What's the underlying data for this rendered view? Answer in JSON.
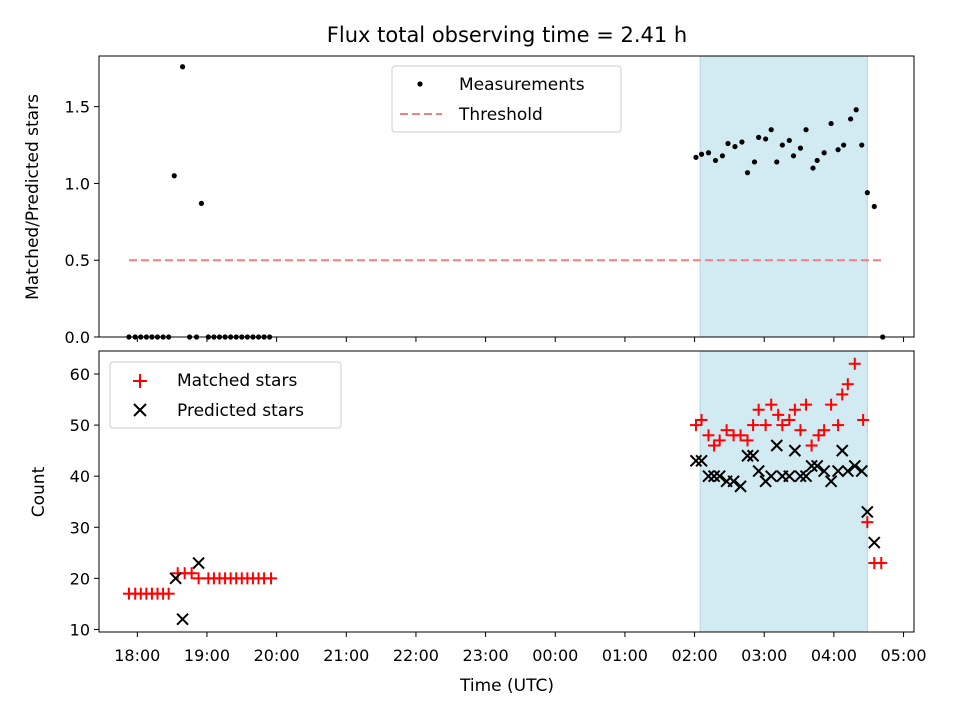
{
  "figure": {
    "title": "Flux total observing time = 2.41 h",
    "shade_color": "#add8e6"
  },
  "chart_data": [
    {
      "type": "scatter",
      "ylabel": "Matched/Predicted stars",
      "xlabel": "",
      "xlim": [
        17.45,
        29.15
      ],
      "ylim": [
        0,
        1.83
      ],
      "yticks": [
        0.0,
        0.5,
        1.0,
        1.5
      ],
      "ytick_labels": [
        "0.0",
        "0.5",
        "1.0",
        "1.5"
      ],
      "legend_position": "upper center",
      "grid": false,
      "shaded_span": [
        26.08,
        28.48
      ],
      "series": [
        {
          "name": "Measurements",
          "type": "scatter",
          "marker": "dot",
          "color": "#000000",
          "points": [
            [
              17.88,
              0
            ],
            [
              17.97,
              0
            ],
            [
              18.05,
              0
            ],
            [
              18.13,
              0
            ],
            [
              18.21,
              0
            ],
            [
              18.29,
              0
            ],
            [
              18.37,
              0
            ],
            [
              18.45,
              0
            ],
            [
              18.53,
              1.05
            ],
            [
              18.65,
              1.76
            ],
            [
              18.75,
              0
            ],
            [
              18.85,
              0
            ],
            [
              18.92,
              0.87
            ],
            [
              19.02,
              0
            ],
            [
              19.1,
              0
            ],
            [
              19.18,
              0
            ],
            [
              19.26,
              0
            ],
            [
              19.34,
              0
            ],
            [
              19.42,
              0
            ],
            [
              19.5,
              0
            ],
            [
              19.58,
              0
            ],
            [
              19.66,
              0
            ],
            [
              19.74,
              0
            ],
            [
              19.82,
              0
            ],
            [
              19.9,
              0
            ],
            [
              26.02,
              1.17
            ],
            [
              26.1,
              1.19
            ],
            [
              26.2,
              1.2
            ],
            [
              26.3,
              1.15
            ],
            [
              26.4,
              1.18
            ],
            [
              26.48,
              1.26
            ],
            [
              26.58,
              1.24
            ],
            [
              26.68,
              1.27
            ],
            [
              26.76,
              1.07
            ],
            [
              26.86,
              1.14
            ],
            [
              26.92,
              1.3
            ],
            [
              27.02,
              1.29
            ],
            [
              27.1,
              1.35
            ],
            [
              27.18,
              1.14
            ],
            [
              27.26,
              1.25
            ],
            [
              27.36,
              1.28
            ],
            [
              27.42,
              1.18
            ],
            [
              27.52,
              1.23
            ],
            [
              27.6,
              1.35
            ],
            [
              27.7,
              1.1
            ],
            [
              27.76,
              1.15
            ],
            [
              27.86,
              1.2
            ],
            [
              27.96,
              1.39
            ],
            [
              28.06,
              1.22
            ],
            [
              28.14,
              1.25
            ],
            [
              28.24,
              1.42
            ],
            [
              28.32,
              1.48
            ],
            [
              28.4,
              1.25
            ],
            [
              28.48,
              0.94
            ],
            [
              28.58,
              0.85
            ],
            [
              28.7,
              0
            ]
          ]
        },
        {
          "name": "Threshold",
          "type": "line",
          "style": "dashed",
          "color": "#f08080",
          "points": [
            [
              17.88,
              0.5
            ],
            [
              28.7,
              0.5
            ]
          ]
        }
      ]
    },
    {
      "type": "scatter",
      "ylabel": "Count",
      "xlabel": "Time (UTC)",
      "xlim": [
        17.45,
        29.15
      ],
      "ylim": [
        9.5,
        64.5
      ],
      "yticks": [
        10,
        20,
        30,
        40,
        50,
        60
      ],
      "ytick_labels": [
        "10",
        "20",
        "30",
        "40",
        "50",
        "60"
      ],
      "xticks": [
        18,
        19,
        20,
        21,
        22,
        23,
        24,
        25,
        26,
        27,
        28,
        29
      ],
      "xtick_labels": [
        "18:00",
        "19:00",
        "20:00",
        "21:00",
        "22:00",
        "23:00",
        "00:00",
        "01:00",
        "02:00",
        "03:00",
        "04:00",
        "05:00"
      ],
      "legend_position": "upper left",
      "grid": false,
      "shaded_span": [
        26.08,
        28.48
      ],
      "series": [
        {
          "name": "Matched stars",
          "type": "scatter",
          "marker": "plus",
          "color": "#ff0000",
          "points": [
            [
              17.88,
              17
            ],
            [
              17.97,
              17
            ],
            [
              18.05,
              17
            ],
            [
              18.13,
              17
            ],
            [
              18.21,
              17
            ],
            [
              18.29,
              17
            ],
            [
              18.37,
              17
            ],
            [
              18.45,
              17
            ],
            [
              18.58,
              21
            ],
            [
              18.68,
              21
            ],
            [
              18.78,
              21
            ],
            [
              18.88,
              20
            ],
            [
              19.02,
              20
            ],
            [
              19.1,
              20
            ],
            [
              19.18,
              20
            ],
            [
              19.26,
              20
            ],
            [
              19.34,
              20
            ],
            [
              19.42,
              20
            ],
            [
              19.5,
              20
            ],
            [
              19.58,
              20
            ],
            [
              19.66,
              20
            ],
            [
              19.74,
              20
            ],
            [
              19.82,
              20
            ],
            [
              19.92,
              20
            ],
            [
              26.02,
              50
            ],
            [
              26.1,
              51
            ],
            [
              26.2,
              48
            ],
            [
              26.28,
              46
            ],
            [
              26.36,
              47
            ],
            [
              26.46,
              49
            ],
            [
              26.56,
              48
            ],
            [
              26.66,
              48
            ],
            [
              26.76,
              47
            ],
            [
              26.84,
              50
            ],
            [
              26.92,
              53
            ],
            [
              27.02,
              50
            ],
            [
              27.1,
              54
            ],
            [
              27.2,
              52
            ],
            [
              27.26,
              50
            ],
            [
              27.36,
              51
            ],
            [
              27.44,
              53
            ],
            [
              27.52,
              49
            ],
            [
              27.6,
              54
            ],
            [
              27.68,
              46
            ],
            [
              27.78,
              48
            ],
            [
              27.86,
              49
            ],
            [
              27.96,
              54
            ],
            [
              28.06,
              50
            ],
            [
              28.12,
              56
            ],
            [
              28.2,
              58
            ],
            [
              28.3,
              62
            ],
            [
              28.42,
              51
            ],
            [
              28.48,
              31
            ],
            [
              28.58,
              23
            ],
            [
              28.68,
              23
            ]
          ]
        },
        {
          "name": "Predicted stars",
          "type": "scatter",
          "marker": "x",
          "color": "#000000",
          "points": [
            [
              18.55,
              20
            ],
            [
              18.65,
              12
            ],
            [
              18.88,
              23
            ],
            [
              26.02,
              43
            ],
            [
              26.1,
              43
            ],
            [
              26.2,
              40
            ],
            [
              26.28,
              40
            ],
            [
              26.36,
              40
            ],
            [
              26.46,
              39
            ],
            [
              26.56,
              39
            ],
            [
              26.66,
              38
            ],
            [
              26.76,
              44
            ],
            [
              26.84,
              44
            ],
            [
              26.92,
              41
            ],
            [
              27.02,
              39
            ],
            [
              27.1,
              40
            ],
            [
              27.18,
              46
            ],
            [
              27.26,
              40
            ],
            [
              27.36,
              40
            ],
            [
              27.44,
              45
            ],
            [
              27.52,
              40
            ],
            [
              27.6,
              40
            ],
            [
              27.68,
              42
            ],
            [
              27.76,
              42
            ],
            [
              27.86,
              41
            ],
            [
              27.96,
              39
            ],
            [
              28.06,
              41
            ],
            [
              28.12,
              45
            ],
            [
              28.2,
              41
            ],
            [
              28.3,
              42
            ],
            [
              28.4,
              41
            ],
            [
              28.48,
              33
            ],
            [
              28.58,
              27
            ]
          ]
        }
      ]
    }
  ]
}
